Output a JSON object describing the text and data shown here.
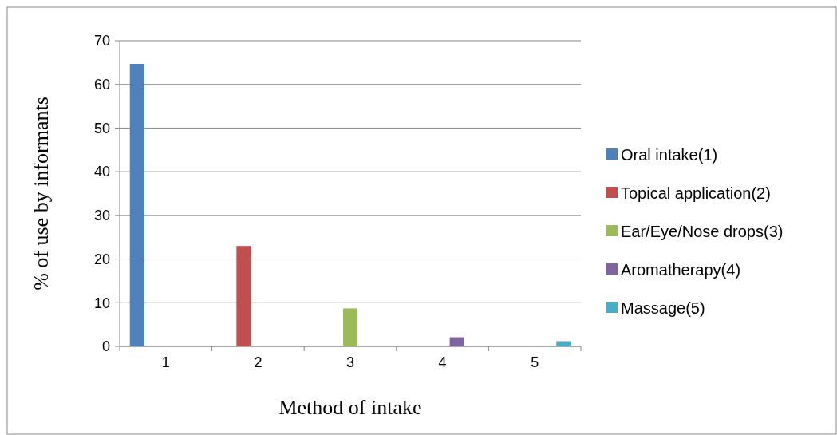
{
  "chart_data": {
    "type": "bar",
    "xlabel": "Method of intake",
    "ylabel": "% of use by informants",
    "categories": [
      "1",
      "2",
      "3",
      "4",
      "5"
    ],
    "series": [
      {
        "name": "Oral intake(1)",
        "color": "#4f81bd",
        "values": [
          64.7,
          null,
          null,
          null,
          null
        ]
      },
      {
        "name": "Topical application(2)",
        "color": "#c0504d",
        "values": [
          null,
          23.0,
          null,
          null,
          null
        ]
      },
      {
        "name": "Ear/Eye/Nose drops(3)",
        "color": "#9bbb59",
        "values": [
          null,
          null,
          8.7,
          null,
          null
        ]
      },
      {
        "name": "Aromatherapy(4)",
        "color": "#8064a2",
        "values": [
          null,
          null,
          null,
          2.1,
          null
        ]
      },
      {
        "name": "Massage(5)",
        "color": "#4bacc6",
        "values": [
          null,
          null,
          null,
          null,
          1.2
        ]
      }
    ],
    "ylim": [
      0,
      70
    ],
    "yticks": [
      0,
      10,
      20,
      30,
      40,
      50,
      60,
      70
    ],
    "grid": "y",
    "legend": "right"
  }
}
